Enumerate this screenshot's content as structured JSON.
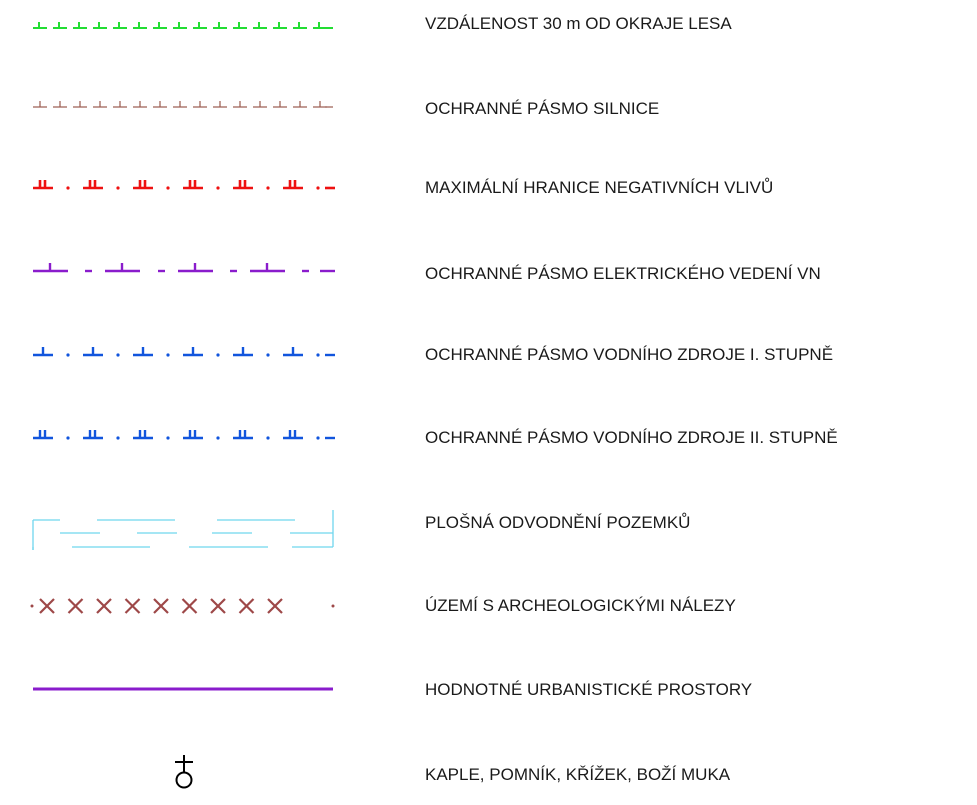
{
  "legend": {
    "items": [
      {
        "id": "forest-edge-30m",
        "label": "VZDÁLENOST 30 m OD OKRAJE LESA",
        "color": "#22dd33"
      },
      {
        "id": "road-protection-zone",
        "label": "OCHRANNÉ PÁSMO SILNICE",
        "color": "#9a5a4e"
      },
      {
        "id": "negative-impact-limit",
        "label": "MAXIMÁLNÍ HRANICE NEGATIVNÍCH VLIVŮ",
        "color": "#ee1111"
      },
      {
        "id": "power-line-vn-zone",
        "label": "OCHRANNÉ PÁSMO ELEKTRICKÉHO VEDENÍ VN",
        "color": "#8a1ccc"
      },
      {
        "id": "water-source-zone-1",
        "label": "OCHRANNÉ PÁSMO VODNÍHO ZDROJE I. STUPNĚ",
        "color": "#1155dd"
      },
      {
        "id": "water-source-zone-2",
        "label": "OCHRANNÉ PÁSMO VODNÍHO ZDROJE II. STUPNĚ",
        "color": "#1155dd"
      },
      {
        "id": "land-drainage",
        "label": "PLOŠNÁ ODVODNĚNÍ POZEMKŮ",
        "color": "#6fd6ee"
      },
      {
        "id": "archaeological-area",
        "label": "ÚZEMÍ S ARCHEOLOGICKÝMI NÁLEZY",
        "color": "#9e4848"
      },
      {
        "id": "urban-spaces",
        "label": "HODNOTNÉ URBANISTICKÉ PROSTORY",
        "color": "#8a1ccc"
      },
      {
        "id": "chapel-cross",
        "label": "KAPLE, POMNÍK, KŘÍŽEK, BOŽÍ MUKA",
        "color": "#000000"
      }
    ]
  }
}
